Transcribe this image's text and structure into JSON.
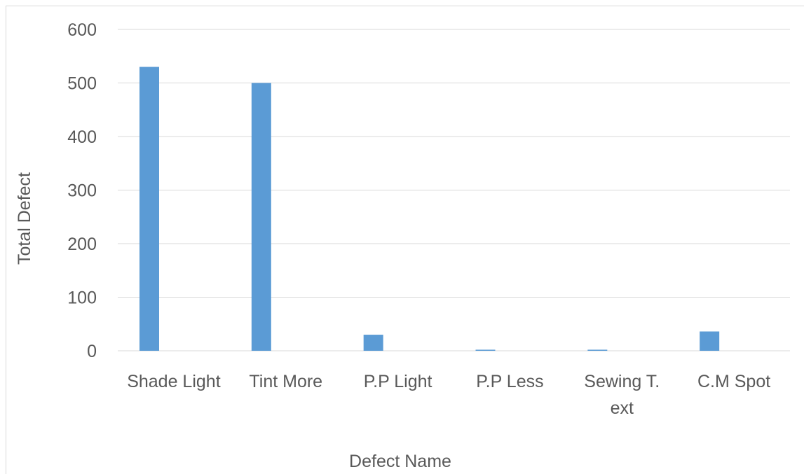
{
  "chart_data": {
    "type": "bar",
    "title": "",
    "xlabel": "Defect Name",
    "ylabel": "Total Defect",
    "categories": [
      "Shade Light",
      "Tint More",
      "P.P Light",
      "P.P Less",
      "Sewing T.\next",
      "C.M Spot"
    ],
    "series": [
      {
        "values": [
          530,
          500,
          30,
          2,
          2,
          36
        ],
        "color": "#5b9bd5"
      }
    ],
    "ylim": [
      0,
      600
    ],
    "yticks": [
      0,
      100,
      200,
      300,
      400,
      500,
      600
    ],
    "grid": true,
    "legend": "none",
    "gridColor": "#d9d9d9",
    "textColor": "#595959"
  }
}
